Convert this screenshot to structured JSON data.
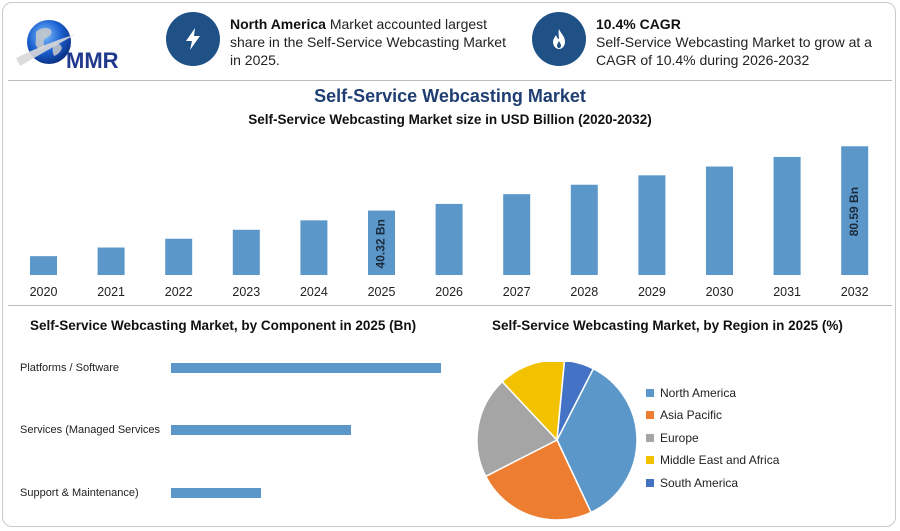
{
  "header": {
    "logo_text": "MMR",
    "highlight_1": {
      "icon": "lightning-bolt-icon",
      "bold": "North America",
      "text": " Market accounted largest share in the Self-Service Webcasting Market in 2025."
    },
    "highlight_2": {
      "icon": "flame-icon",
      "bold": "10.4% CAGR",
      "text": "Self-Service Webcasting Market to grow at a CAGR of 10.4% during 2026-2032"
    }
  },
  "colors": {
    "bar": "#5b97c9",
    "navy": "#1f5187",
    "title": "#1f3e72",
    "north_america": "#5b97c9",
    "asia_pacific": "#ed7d31",
    "europe": "#a5a5a5",
    "mea": "#f2c200",
    "south_america": "#4472c4"
  },
  "chart_data": [
    {
      "type": "bar",
      "title": "Self-Service Webcasting Market",
      "subtitle": "Self-Service Webcasting Market size in USD Billion (2020-2032)",
      "categories": [
        "2020",
        "2021",
        "2022",
        "2023",
        "2024",
        "2025",
        "2026",
        "2027",
        "2028",
        "2029",
        "2030",
        "2031",
        "2032"
      ],
      "values": [
        11.8,
        17.2,
        22.7,
        28.3,
        34.2,
        40.32,
        44.5,
        50.6,
        56.5,
        62.4,
        67.9,
        73.9,
        80.59
      ],
      "data_labels": [
        {
          "category": "2025",
          "text": "40.32 Bn"
        },
        {
          "category": "2032",
          "text": "80.59 Bn"
        }
      ],
      "ylim": [
        0,
        82
      ],
      "grid": false,
      "legend": "none"
    },
    {
      "type": "bar",
      "orientation": "horizontal",
      "title": "Self-Service Webcasting Market, by Component in 2025 (Bn)",
      "categories": [
        "Platforms / Software",
        "Services (Managed Services",
        "Support & Maintenance)"
      ],
      "values": [
        27,
        18,
        9
      ],
      "xlim": [
        0,
        27
      ],
      "grid": false,
      "legend": "none"
    },
    {
      "type": "pie",
      "title": "Self-Service Webcasting Market, by Region in 2025 (%)",
      "labels": [
        "North America",
        "Asia Pacific",
        "Europe",
        "Middle East and Africa",
        "South America"
      ],
      "values": [
        35.5,
        24.5,
        20.5,
        13.5,
        6
      ],
      "legend": "right"
    }
  ]
}
